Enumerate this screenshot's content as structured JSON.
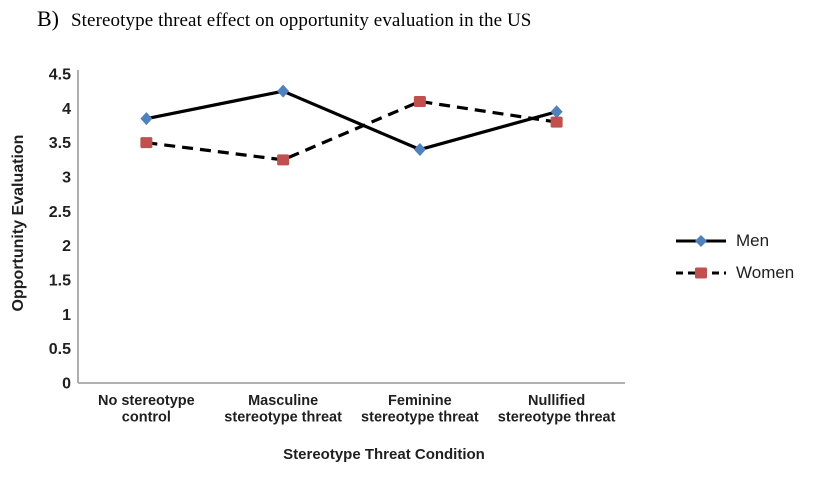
{
  "title": {
    "prefix": "B)",
    "text": "Stereotype threat effect on opportunity evaluation in the US"
  },
  "chart_data": {
    "type": "line",
    "title": "B) Stereotype threat effect on opportunity evaluation in the US",
    "xlabel": "Stereotype Threat Condition",
    "ylabel": "Opportunity Evaluation",
    "ylim": [
      0,
      4.5
    ],
    "ytick_step": 0.5,
    "ytick_labels": [
      "0",
      "0.5",
      "1",
      "1.5",
      "2",
      "2.5",
      "3",
      "3.5",
      "4",
      "4.5"
    ],
    "grid": false,
    "legend_position": "right",
    "categories": [
      "No stereotype control",
      "Masculine stereotype threat",
      "Feminine stereotype threat",
      "Nullified stereotype threat"
    ],
    "category_label_lines": [
      [
        "No stereotype",
        "control"
      ],
      [
        "Masculine",
        "stereotype threat"
      ],
      [
        "Feminine",
        "stereotype threat"
      ],
      [
        "Nullified",
        "stereotype threat"
      ]
    ],
    "series": [
      {
        "name": "Men",
        "values": [
          3.85,
          4.25,
          3.4,
          3.95
        ],
        "color": "#4F81BD",
        "marker": "diamond",
        "line_color": "#000000",
        "line_style": "solid"
      },
      {
        "name": "Women",
        "values": [
          3.5,
          3.25,
          4.1,
          3.8
        ],
        "color": "#C0504D",
        "marker": "square",
        "line_color": "#000000",
        "line_style": "dashed"
      }
    ],
    "axis_color": "#a6a6a6",
    "text_color": "#1f1f1f"
  }
}
